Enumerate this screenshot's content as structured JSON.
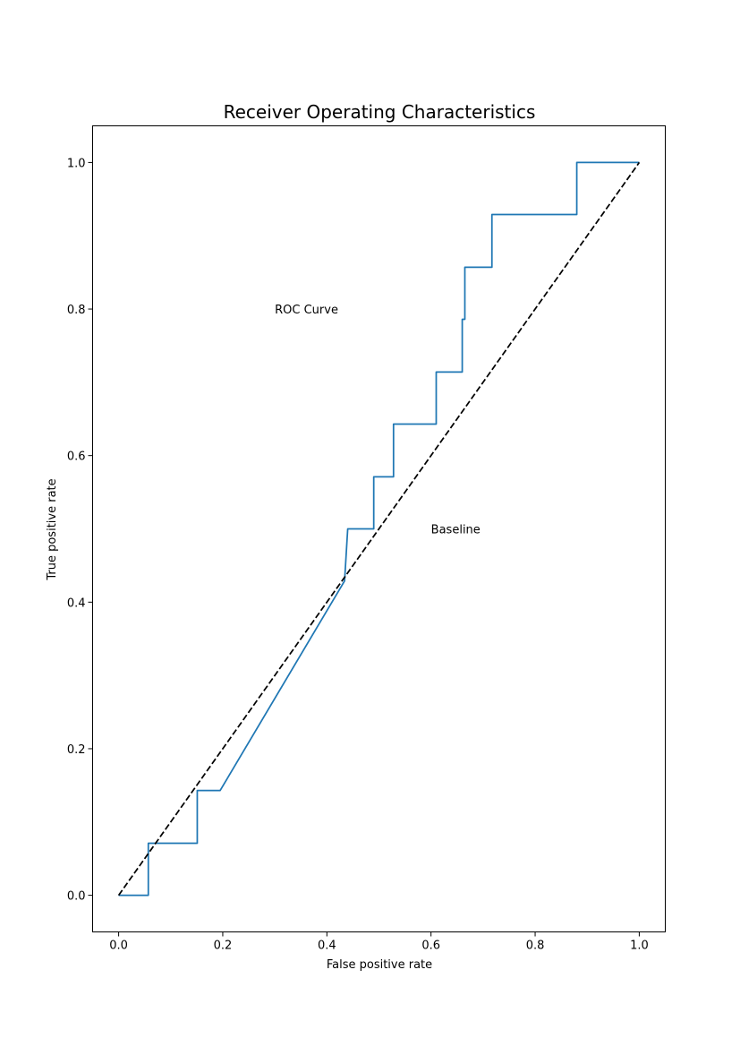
{
  "chart_data": {
    "type": "line",
    "title": "Receiver Operating Characteristics",
    "xlabel": "False positive rate",
    "ylabel": "True positive rate",
    "xlim": [
      -0.05,
      1.05
    ],
    "ylim": [
      -0.05,
      1.05
    ],
    "x_ticks": [
      0.0,
      0.2,
      0.4,
      0.6,
      0.8,
      1.0
    ],
    "y_ticks": [
      0.0,
      0.2,
      0.4,
      0.6,
      0.8,
      1.0
    ],
    "x_tick_labels": [
      "0.0",
      "0.2",
      "0.4",
      "0.6",
      "0.8",
      "1.0"
    ],
    "y_tick_labels": [
      "0.0",
      "0.2",
      "0.4",
      "0.6",
      "0.8",
      "1.0"
    ],
    "grid": false,
    "series": [
      {
        "color": "#1f77b4",
        "style": "solid",
        "x": [
          0.0,
          0.057,
          0.057,
          0.151,
          0.151,
          0.195,
          0.434,
          0.434,
          0.44,
          0.44,
          0.49,
          0.49,
          0.522,
          0.528,
          0.528,
          0.61,
          0.61,
          0.66,
          0.66,
          0.665,
          0.665,
          0.717,
          0.717,
          0.88,
          0.88,
          1.0
        ],
        "y": [
          0.0,
          0.0,
          0.071,
          0.071,
          0.143,
          0.143,
          0.429,
          0.429,
          0.5,
          0.5,
          0.5,
          0.571,
          0.571,
          0.571,
          0.643,
          0.643,
          0.714,
          0.714,
          0.786,
          0.786,
          0.857,
          0.857,
          0.929,
          0.929,
          1.0,
          1.0
        ]
      },
      {
        "color": "#000000",
        "style": "dashed",
        "x": [
          0.0,
          1.0
        ],
        "y": [
          0.0,
          1.0
        ]
      }
    ],
    "annotations": [
      {
        "text": "ROC Curve",
        "x": 0.3,
        "y": 0.8
      },
      {
        "text": "Baseline",
        "x": 0.6,
        "y": 0.5
      }
    ]
  }
}
